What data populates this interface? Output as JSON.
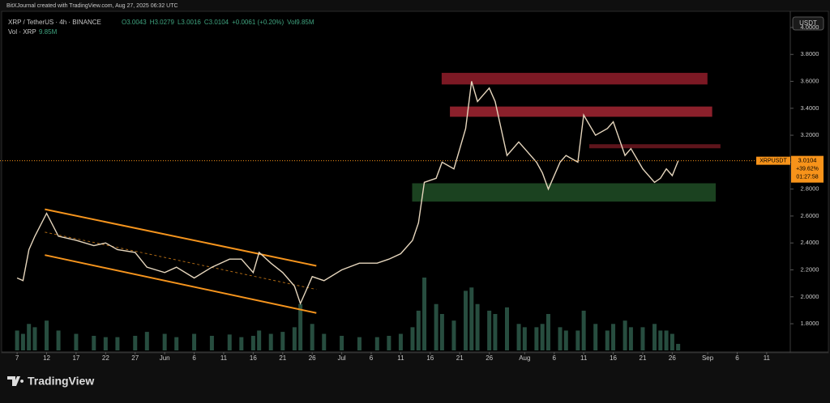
{
  "header": {
    "attribution": "BitXJournal created with TradingView.com, Aug 27, 2025 06:32 UTC",
    "ohlc_labels": [
      "O3.0043",
      "H3.0279",
      "L3.0016",
      "C3.0104",
      "+0.0061 (+0.20%)",
      "Vol9.85M"
    ],
    "volume_label": "9.85M",
    "currency_button": "USDT"
  },
  "chart_data": {
    "type": "line",
    "xlim": [
      -2.9,
      131
    ],
    "ylim": [
      1.59,
      4.12
    ],
    "xticks": [
      {
        "value": 0,
        "label": "7"
      },
      {
        "value": 5,
        "label": "12"
      },
      {
        "value": 10,
        "label": "17"
      },
      {
        "value": 15,
        "label": "22"
      },
      {
        "value": 20,
        "label": "27"
      },
      {
        "value": 25,
        "label": "Jun"
      },
      {
        "value": 30,
        "label": "6"
      },
      {
        "value": 35,
        "label": "11"
      },
      {
        "value": 40,
        "label": "16"
      },
      {
        "value": 45,
        "label": "21"
      },
      {
        "value": 50,
        "label": "26"
      },
      {
        "value": 55,
        "label": "Jul"
      },
      {
        "value": 60,
        "label": "6"
      },
      {
        "value": 65,
        "label": "11"
      },
      {
        "value": 70,
        "label": "16"
      },
      {
        "value": 75,
        "label": "21"
      },
      {
        "value": 80,
        "label": "26"
      },
      {
        "value": 86,
        "label": "Aug"
      },
      {
        "value": 91,
        "label": "6"
      },
      {
        "value": 96,
        "label": "11"
      },
      {
        "value": 101,
        "label": "16"
      },
      {
        "value": 106,
        "label": "21"
      },
      {
        "value": 111,
        "label": "26"
      },
      {
        "value": 117,
        "label": "Sep"
      },
      {
        "value": 122,
        "label": "6"
      },
      {
        "value": 127,
        "label": "11"
      }
    ],
    "yticks": [
      {
        "value": 1.8,
        "label": "1.8000"
      },
      {
        "value": 2.0,
        "label": "2.0000"
      },
      {
        "value": 2.2,
        "label": "2.2000"
      },
      {
        "value": 2.4,
        "label": "2.4000"
      },
      {
        "value": 2.6,
        "label": "2.6000"
      },
      {
        "value": 2.8,
        "label": "2.8000"
      },
      {
        "value": 3.0,
        "label": "3.0000"
      },
      {
        "value": 3.2,
        "label": "3.2000"
      },
      {
        "value": 3.4,
        "label": "3.4000"
      },
      {
        "value": 3.6,
        "label": "3.6000"
      },
      {
        "value": 3.8,
        "label": "3.8000"
      },
      {
        "value": 4.0,
        "label": "4.0000"
      }
    ],
    "x": [
      0,
      1,
      2,
      3,
      5,
      7,
      10,
      13,
      15,
      17,
      20,
      22,
      25,
      27,
      30,
      33,
      36,
      38,
      40,
      41,
      43,
      45,
      47,
      48,
      50,
      52,
      55,
      58,
      61,
      63,
      65,
      67,
      68,
      69,
      71,
      72,
      74,
      76,
      77,
      78,
      80,
      81,
      83,
      85,
      86,
      88,
      89,
      90,
      92,
      93,
      95,
      96,
      98,
      100,
      101,
      103,
      104,
      106,
      108,
      109,
      110,
      111,
      112
    ],
    "series": [
      {
        "name": "XRP / TetherUS · 4h · BINANCE",
        "color": "#e6d6bd",
        "values": [
          2.14,
          2.12,
          2.35,
          2.45,
          2.62,
          2.45,
          2.42,
          2.38,
          2.4,
          2.35,
          2.33,
          2.22,
          2.18,
          2.22,
          2.14,
          2.22,
          2.28,
          2.28,
          2.18,
          2.33,
          2.25,
          2.18,
          2.08,
          1.95,
          2.15,
          2.12,
          2.2,
          2.25,
          2.25,
          2.28,
          2.32,
          2.42,
          2.55,
          2.85,
          2.88,
          3.0,
          2.95,
          3.25,
          3.6,
          3.45,
          3.55,
          3.45,
          3.05,
          3.15,
          3.1,
          3.0,
          2.92,
          2.8,
          3.0,
          3.05,
          3.0,
          3.35,
          3.2,
          3.25,
          3.3,
          3.05,
          3.1,
          2.95,
          2.85,
          2.88,
          2.95,
          2.9,
          3.01
        ]
      },
      {
        "name": "Vol · XRP",
        "color": "#2e5a4a",
        "values": [
          30,
          25,
          40,
          35,
          45,
          30,
          25,
          22,
          20,
          20,
          22,
          28,
          25,
          20,
          25,
          22,
          24,
          20,
          22,
          30,
          25,
          28,
          35,
          70,
          40,
          25,
          22,
          20,
          20,
          22,
          25,
          35,
          60,
          110,
          70,
          55,
          45,
          90,
          95,
          70,
          60,
          55,
          65,
          40,
          35,
          35,
          40,
          55,
          35,
          30,
          30,
          60,
          40,
          30,
          40,
          45,
          35,
          35,
          40,
          30,
          30,
          25,
          9.85
        ]
      }
    ],
    "zones": [
      {
        "xlim": [
          72,
          116.9
        ],
        "ylim": [
          3.58,
          3.66
        ],
        "color": "#8a1c28"
      },
      {
        "xlim": [
          73.4,
          117.7
        ],
        "ylim": [
          3.34,
          3.41
        ],
        "color": "#9b2430"
      },
      {
        "xlim": [
          97,
          119.1
        ],
        "ylim": [
          3.106,
          3.13
        ],
        "color": "#6a1820"
      },
      {
        "xlim": [
          67,
          118.3
        ],
        "ylim": [
          2.71,
          2.84
        ],
        "color": "#1f4a24"
      }
    ],
    "channel": {
      "color": "#f5941d",
      "upper": {
        "x": [
          4.7,
          50.7
        ],
        "y": [
          2.65,
          2.23
        ]
      },
      "lower": {
        "x": [
          4.7,
          50.7
        ],
        "y": [
          2.31,
          1.88
        ]
      }
    },
    "price_tag": {
      "symbol": "XRPUSDT",
      "value": 3.0104,
      "change": "+39.62%",
      "countdown": "01:27:58",
      "color": "#f7931a"
    }
  },
  "branding": "TradingView"
}
